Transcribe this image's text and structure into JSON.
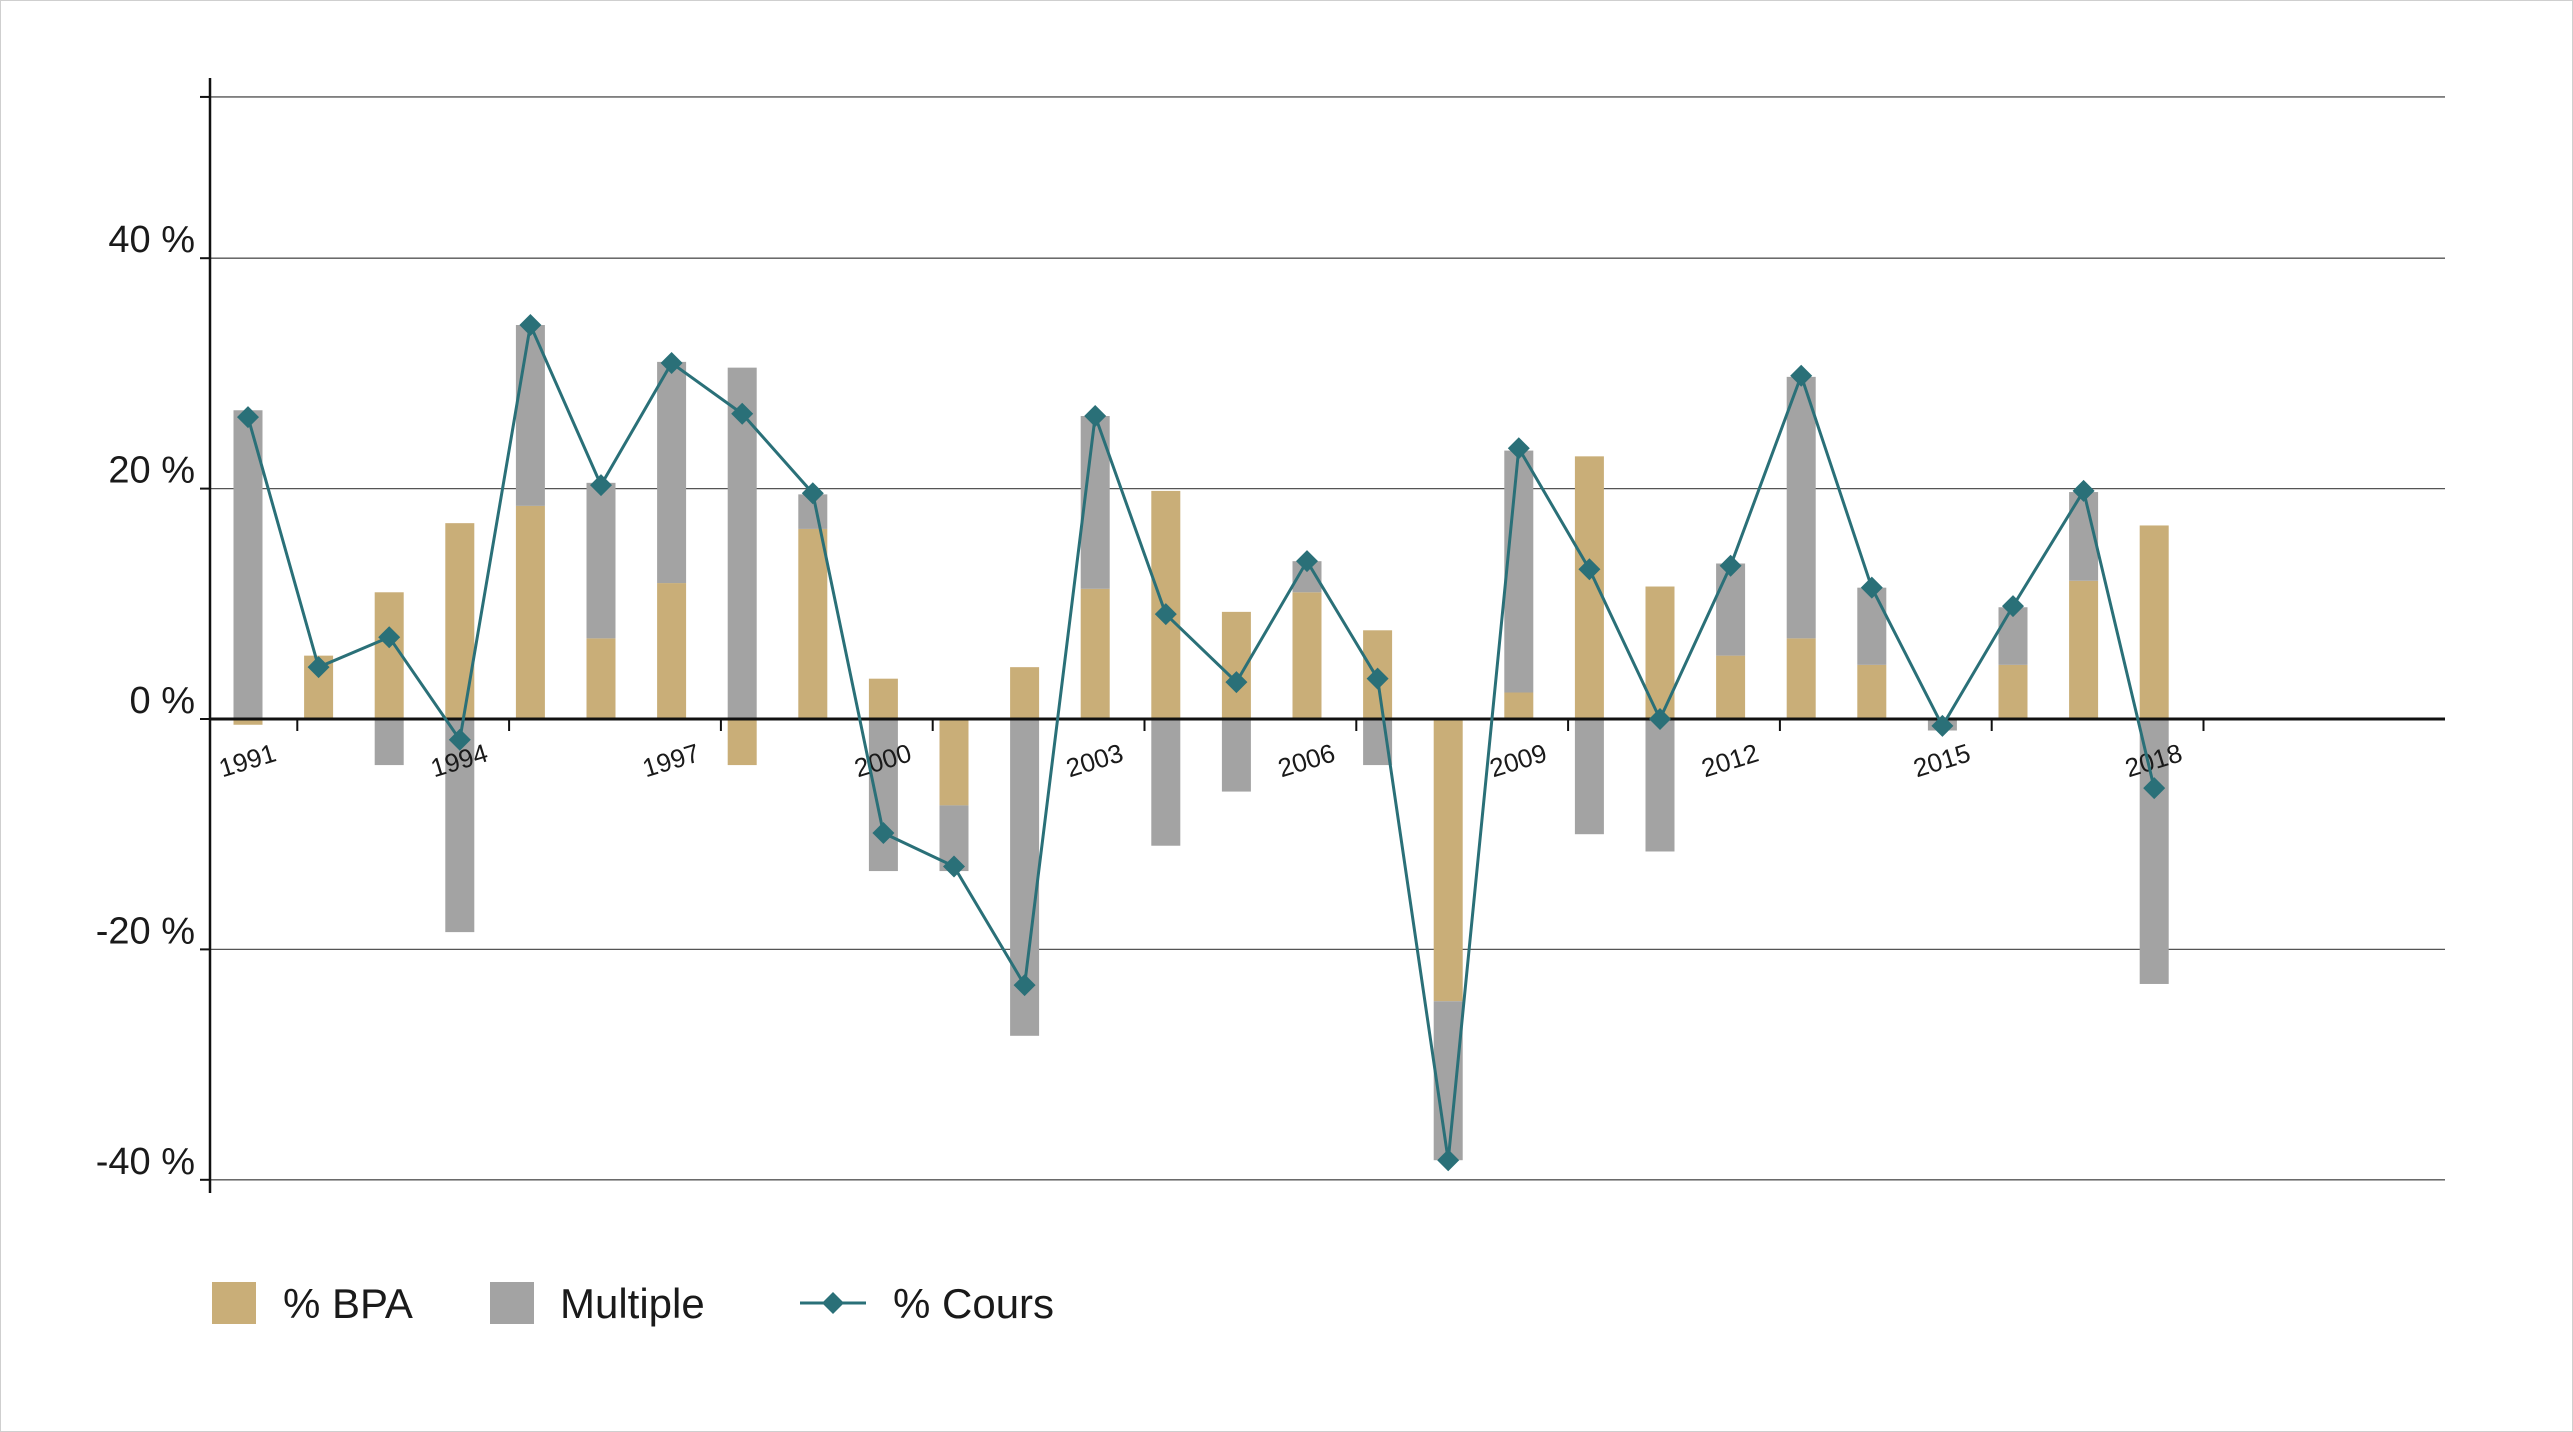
{
  "colors": {
    "bpa": "#C9AE78",
    "multiple": "#A3A3A3",
    "cours": "#2A7078",
    "grid": "#555555",
    "axis": "#111111"
  },
  "chart_data": {
    "type": "bar",
    "years": [
      1991,
      1992,
      1993,
      1994,
      1995,
      1996,
      1997,
      1998,
      1999,
      2000,
      2001,
      2002,
      2003,
      2004,
      2005,
      2006,
      2007,
      2008,
      2009,
      2010,
      2011,
      2012,
      2013,
      2014,
      2015,
      2016,
      2017,
      2018
    ],
    "x_tick_labels": [
      "1991",
      "1994",
      "1997",
      "2000",
      "2003",
      "2006",
      "2009",
      "2012",
      "2015",
      "2018"
    ],
    "y_tick_labels": [
      "-40 %",
      "-20 %",
      "0 %",
      "20 %",
      "40 %"
    ],
    "y_ticks": [
      -40,
      -20,
      0,
      20,
      40
    ],
    "ylim": [
      -40,
      55
    ],
    "grid": true,
    "legend_position": "bottom-left",
    "series": [
      {
        "name": "% BPA",
        "kind": "bar",
        "icon": "square",
        "values": [
          -0.5,
          5.5,
          11,
          17,
          18.5,
          7,
          11.8,
          -4,
          16.5,
          3.5,
          -7.5,
          4.5,
          11.3,
          19.8,
          9.3,
          11,
          7.7,
          -24.5,
          2.3,
          22.8,
          11.5,
          5.5,
          7,
          4.7,
          0,
          4.7,
          12,
          16.8
        ]
      },
      {
        "name": "Multiple",
        "kind": "bar",
        "icon": "square",
        "values": [
          26.8,
          0,
          -4,
          -18.5,
          15.7,
          13.5,
          19.2,
          30.5,
          3,
          -13.2,
          -5.7,
          -27.5,
          15,
          -11,
          -6.3,
          2.7,
          -4,
          -13.8,
          21,
          -10,
          -11.5,
          8,
          22.7,
          6.7,
          -1,
          5,
          7.7,
          -23
        ]
      },
      {
        "name": "% Cours",
        "kind": "line",
        "icon": "line-diamond",
        "values": [
          26.2,
          4.5,
          7.1,
          -1.8,
          34.2,
          20.3,
          30.9,
          26.5,
          19.6,
          -9.9,
          -12.8,
          -23.1,
          26.3,
          9.1,
          3.2,
          13.7,
          3.5,
          -38.3,
          23.5,
          13,
          0,
          13.3,
          29.8,
          11.4,
          -0.6,
          9.8,
          19.8,
          -6
        ]
      }
    ]
  }
}
